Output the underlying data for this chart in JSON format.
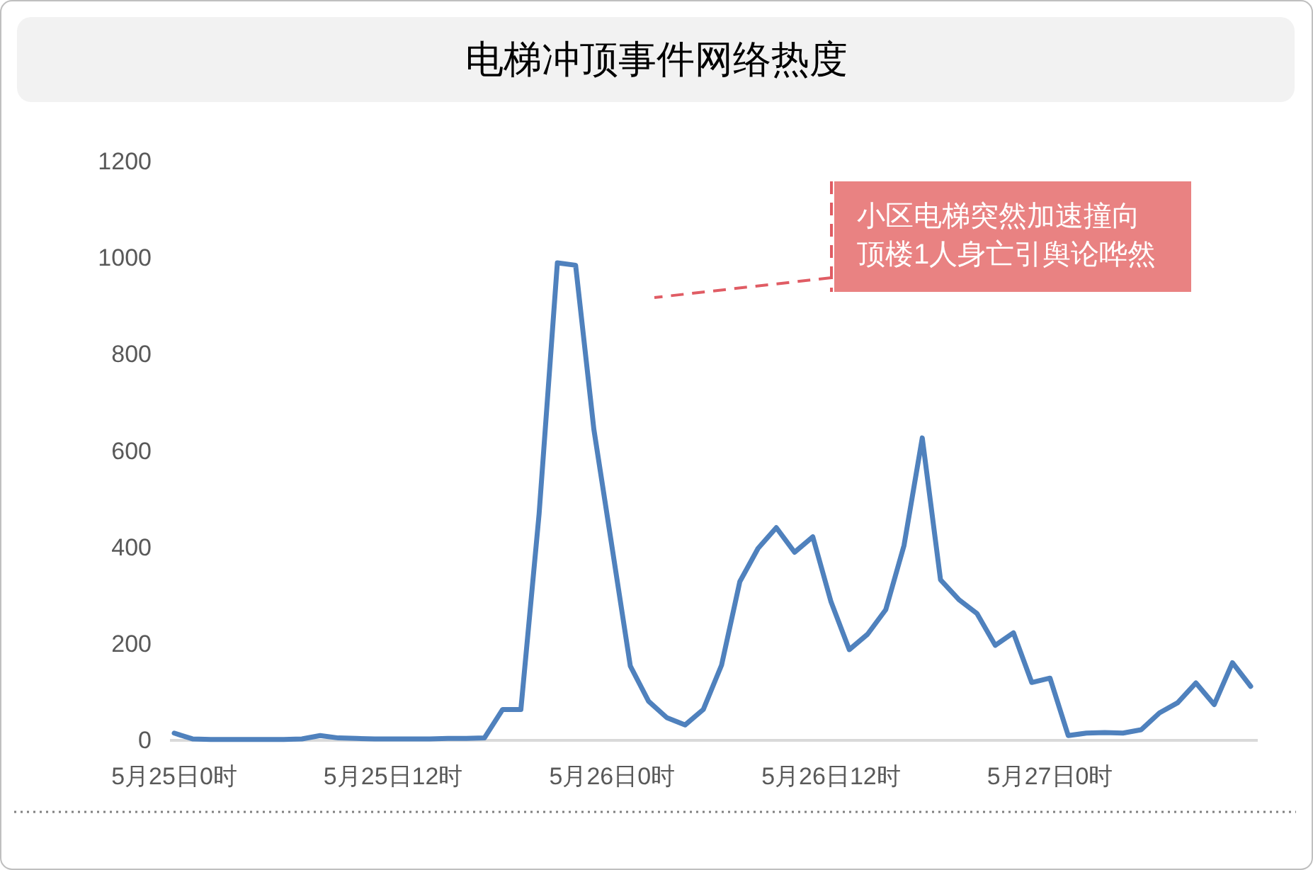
{
  "chart_data": {
    "type": "line",
    "title": "电梯冲顶事件网络热度",
    "categories": [
      "5月25日0时",
      null,
      null,
      null,
      null,
      null,
      null,
      null,
      null,
      null,
      null,
      null,
      "5月25日12时",
      null,
      null,
      null,
      null,
      null,
      null,
      null,
      null,
      null,
      null,
      null,
      "5月26日0时",
      null,
      null,
      null,
      null,
      null,
      null,
      null,
      null,
      null,
      null,
      null,
      "5月26日12时",
      null,
      null,
      null,
      null,
      null,
      null,
      null,
      null,
      null,
      null,
      null,
      "5月27日0时",
      null,
      null,
      null,
      null,
      null,
      null,
      null,
      null,
      null,
      null,
      null
    ],
    "ylim": [
      0,
      1200
    ],
    "yticks": [
      0,
      200,
      400,
      600,
      800,
      1000,
      1200
    ],
    "series": [
      {
        "color": "#4f81bd",
        "values": [
          15,
          3,
          2,
          2,
          2,
          2,
          2,
          3,
          10,
          5,
          4,
          3,
          3,
          3,
          3,
          4,
          4,
          5,
          64,
          64,
          470,
          990,
          985,
          645,
          400,
          154,
          81,
          47,
          32,
          64,
          156,
          329,
          398,
          441,
          390,
          422,
          287,
          188,
          220,
          271,
          404,
          627,
          333,
          292,
          263,
          197,
          223,
          120,
          129,
          10,
          15,
          16,
          15,
          22,
          57,
          78,
          119,
          74,
          161,
          112
        ]
      }
    ],
    "marker": "none",
    "line_style": "solid",
    "annotations": [
      "小区电梯突然加速撞向顶楼1人身亡引舆论哗然"
    ]
  }
}
